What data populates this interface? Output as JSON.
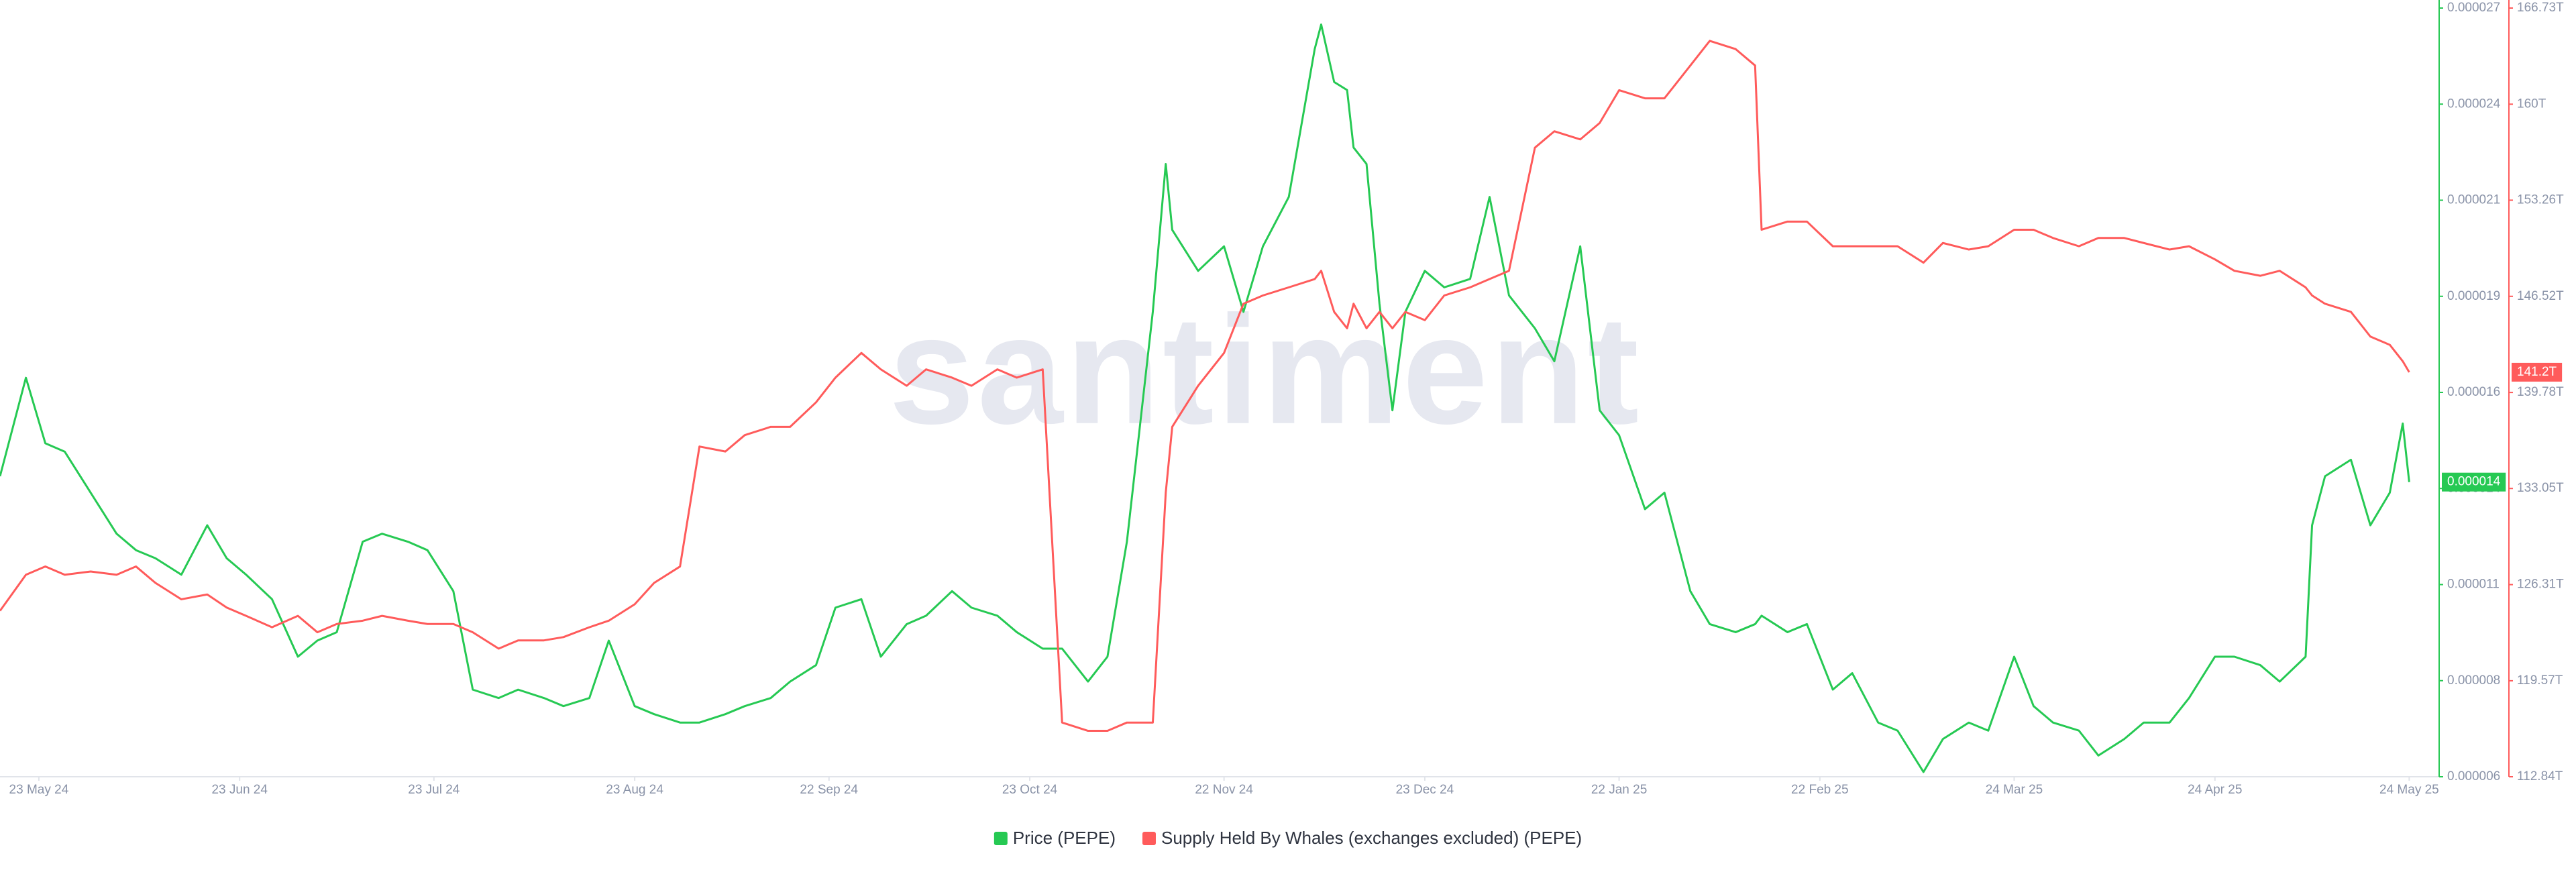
{
  "chart_data": {
    "type": "line",
    "watermark": "santiment",
    "x": [
      "2024-05-17",
      "2024-05-21",
      "2024-05-24",
      "2024-05-27",
      "2024-05-31",
      "2024-06-04",
      "2024-06-07",
      "2024-06-10",
      "2024-06-14",
      "2024-06-18",
      "2024-06-21",
      "2024-06-24",
      "2024-06-28",
      "2024-07-02",
      "2024-07-05",
      "2024-07-08",
      "2024-07-12",
      "2024-07-15",
      "2024-07-19",
      "2024-07-22",
      "2024-07-26",
      "2024-07-29",
      "2024-08-02",
      "2024-08-05",
      "2024-08-09",
      "2024-08-12",
      "2024-08-16",
      "2024-08-19",
      "2024-08-23",
      "2024-08-26",
      "2024-08-30",
      "2024-09-02",
      "2024-09-06",
      "2024-09-09",
      "2024-09-13",
      "2024-09-16",
      "2024-09-20",
      "2024-09-23",
      "2024-09-27",
      "2024-09-30",
      "2024-10-04",
      "2024-10-07",
      "2024-10-11",
      "2024-10-14",
      "2024-10-18",
      "2024-10-21",
      "2024-10-25",
      "2024-10-28",
      "2024-11-01",
      "2024-11-04",
      "2024-11-07",
      "2024-11-11",
      "2024-11-13",
      "2024-11-14",
      "2024-11-18",
      "2024-11-22",
      "2024-11-25",
      "2024-11-28",
      "2024-12-02",
      "2024-12-06",
      "2024-12-07",
      "2024-12-09",
      "2024-12-11",
      "2024-12-12",
      "2024-12-14",
      "2024-12-16",
      "2024-12-18",
      "2024-12-20",
      "2024-12-23",
      "2024-12-26",
      "2024-12-30",
      "2025-01-02",
      "2025-01-05",
      "2025-01-09",
      "2025-01-12",
      "2025-01-16",
      "2025-01-19",
      "2025-01-22",
      "2025-01-26",
      "2025-01-29",
      "2025-02-02",
      "2025-02-05",
      "2025-02-09",
      "2025-02-12",
      "2025-02-13",
      "2025-02-17",
      "2025-02-20",
      "2025-02-24",
      "2025-02-27",
      "2025-03-03",
      "2025-03-06",
      "2025-03-10",
      "2025-03-13",
      "2025-03-17",
      "2025-03-20",
      "2025-03-24",
      "2025-03-27",
      "2025-03-30",
      "2025-04-03",
      "2025-04-06",
      "2025-04-10",
      "2025-04-13",
      "2025-04-17",
      "2025-04-20",
      "2025-04-24",
      "2025-04-27",
      "2025-05-01",
      "2025-05-04",
      "2025-05-08",
      "2025-05-09",
      "2025-05-11",
      "2025-05-15",
      "2025-05-18",
      "2025-05-21",
      "2025-05-23",
      "2025-05-24"
    ],
    "xlim": [
      "2024-05-17",
      "2025-05-28"
    ],
    "xticks": [
      {
        "value": "2024-05-23",
        "label": "23 May 24"
      },
      {
        "value": "2024-06-23",
        "label": "23 Jun 24"
      },
      {
        "value": "2024-07-23",
        "label": "23 Jul 24"
      },
      {
        "value": "2024-08-23",
        "label": "23 Aug 24"
      },
      {
        "value": "2024-09-22",
        "label": "22 Sep 24"
      },
      {
        "value": "2024-10-23",
        "label": "23 Oct 24"
      },
      {
        "value": "2024-11-22",
        "label": "22 Nov 24"
      },
      {
        "value": "2024-12-23",
        "label": "23 Dec 24"
      },
      {
        "value": "2025-01-22",
        "label": "22 Jan 25"
      },
      {
        "value": "2025-02-22",
        "label": "22 Feb 25"
      },
      {
        "value": "2025-03-24",
        "label": "24 Mar 25"
      },
      {
        "value": "2025-04-24",
        "label": "24 Apr 25"
      },
      {
        "value": "2025-05-24",
        "label": "24 May 25"
      }
    ],
    "ylim": [
      6e-06,
      2.7e-05
    ],
    "yticks": [
      {
        "value": 6e-06,
        "label": "0.000006"
      },
      {
        "value": 8.625e-06,
        "label": "0.000008"
      },
      {
        "value": 1.125e-05,
        "label": "0.000011"
      },
      {
        "value": 1.3875e-05,
        "label": "0.000014"
      },
      {
        "value": 1.65e-05,
        "label": "0.000016"
      },
      {
        "value": 1.9125e-05,
        "label": "0.000019"
      },
      {
        "value": 2.175e-05,
        "label": "0.000021"
      },
      {
        "value": 2.4375e-05,
        "label": "0.000024"
      },
      {
        "value": 2.7e-05,
        "label": "0.000027"
      }
    ],
    "y2lim": [
      112.84,
      166.73
    ],
    "y2ticks": [
      {
        "value": 112.84,
        "label": "112.84T"
      },
      {
        "value": 119.57,
        "label": "119.57T"
      },
      {
        "value": 126.31,
        "label": "126.31T"
      },
      {
        "value": 133.05,
        "label": "133.05T"
      },
      {
        "value": 139.78,
        "label": "139.78T"
      },
      {
        "value": 146.52,
        "label": "146.52T"
      },
      {
        "value": 153.26,
        "label": "153.26T"
      },
      {
        "value": 159.99,
        "label": "160T"
      },
      {
        "value": 166.73,
        "label": "166.73T"
      }
    ],
    "grid": false,
    "legend": "bottom",
    "series": [
      {
        "name": "Price (PEPE)",
        "color": "#26c953",
        "axis": "y",
        "last_value_label": "0.000014",
        "values": [
          1.421e-05,
          1.69e-05,
          1.511e-05,
          1.488e-05,
          1.376e-05,
          1.264e-05,
          1.219e-05,
          1.197e-05,
          1.152e-05,
          1.287e-05,
          1.197e-05,
          1.152e-05,
          1.085e-05,
          9.28e-06,
          9.72e-06,
          9.95e-06,
          1.242e-05,
          1.264e-05,
          1.242e-05,
          1.219e-05,
          1.107e-05,
          8.38e-06,
          8.15e-06,
          8.38e-06,
          8.15e-06,
          7.93e-06,
          8.15e-06,
          9.72e-06,
          7.93e-06,
          7.71e-06,
          7.48e-06,
          7.48e-06,
          7.71e-06,
          7.93e-06,
          8.15e-06,
          8.6e-06,
          9.05e-06,
          1.062e-05,
          1.085e-05,
          9.28e-06,
          1.017e-05,
          1.04e-05,
          1.107e-05,
          1.062e-05,
          1.04e-05,
          9.95e-06,
          9.5e-06,
          9.5e-06,
          8.6e-06,
          9.28e-06,
          1.242e-05,
          1.87e-05,
          2.274e-05,
          2.094e-05,
          1.982e-05,
          2.049e-05,
          1.87e-05,
          2.049e-05,
          2.184e-05,
          2.588e-05,
          2.655e-05,
          2.498e-05,
          2.476e-05,
          2.319e-05,
          2.274e-05,
          1.892e-05,
          1.601e-05,
          1.87e-05,
          1.982e-05,
          1.937e-05,
          1.96e-05,
          2.184e-05,
          1.915e-05,
          1.825e-05,
          1.735e-05,
          2.049e-05,
          1.601e-05,
          1.533e-05,
          1.331e-05,
          1.376e-05,
          1.107e-05,
          1.017e-05,
          9.95e-06,
          1.017e-05,
          1.04e-05,
          9.95e-06,
          1.017e-05,
          8.38e-06,
          8.83e-06,
          7.48e-06,
          7.26e-06,
          6.13e-06,
          7.03e-06,
          7.48e-06,
          7.26e-06,
          9.28e-06,
          7.93e-06,
          7.48e-06,
          7.26e-06,
          6.58e-06,
          7.03e-06,
          7.48e-06,
          7.48e-06,
          8.15e-06,
          9.28e-06,
          9.28e-06,
          9.05e-06,
          8.6e-06,
          9.28e-06,
          1.287e-05,
          1.421e-05,
          1.466e-05,
          1.287e-05,
          1.376e-05,
          1.565e-05,
          1.405e-05
        ]
      },
      {
        "name": "Supply Held By Whales (exchanges excluded) (PEPE)",
        "color": "#ff5b5b",
        "axis": "y2",
        "last_value_label": "141.2T",
        "values": [
          124.47,
          127,
          127.58,
          127,
          127.23,
          127,
          127.58,
          126.43,
          125.28,
          125.62,
          124.7,
          124.12,
          123.32,
          124.12,
          122.97,
          123.55,
          123.78,
          124.12,
          123.78,
          123.55,
          123.55,
          122.97,
          121.82,
          122.4,
          122.4,
          122.63,
          123.32,
          123.78,
          124.93,
          126.43,
          127.58,
          135.99,
          135.64,
          136.79,
          137.37,
          137.37,
          139.09,
          140.82,
          142.55,
          141.4,
          140.25,
          141.4,
          140.82,
          140.25,
          141.4,
          140.82,
          141.4,
          116.64,
          116.06,
          116.06,
          116.64,
          116.64,
          132.76,
          137.37,
          140.25,
          142.55,
          146,
          146.58,
          147.15,
          147.73,
          148.31,
          145.43,
          144.28,
          146,
          144.28,
          145.43,
          144.28,
          145.43,
          144.85,
          146.58,
          147.15,
          147.73,
          148.31,
          156.94,
          158.09,
          157.52,
          158.67,
          160.97,
          160.4,
          160.4,
          162.7,
          164.43,
          163.85,
          162.7,
          151.19,
          151.76,
          151.76,
          150.03,
          150.03,
          150.03,
          150.03,
          148.88,
          150.26,
          149.8,
          150.03,
          151.19,
          151.19,
          150.61,
          150.03,
          150.61,
          150.61,
          150.26,
          149.8,
          150.03,
          149.11,
          148.31,
          147.96,
          148.31,
          147.15,
          146.58,
          146,
          145.43,
          143.7,
          143.12,
          141.97,
          141.2
        ]
      }
    ]
  }
}
